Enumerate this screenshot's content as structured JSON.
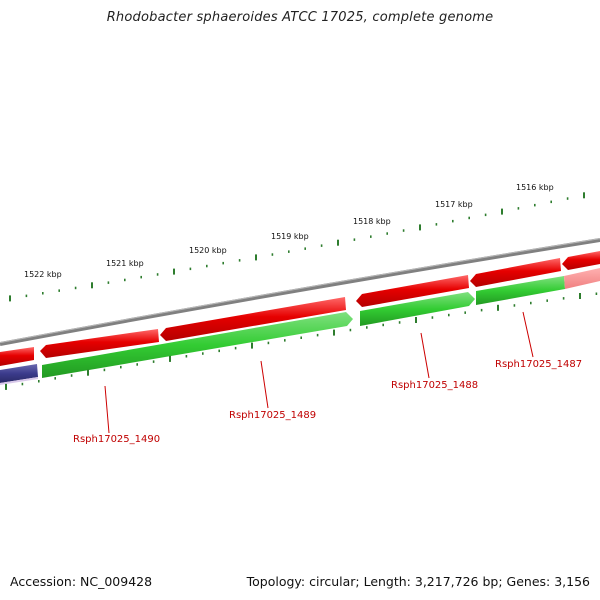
{
  "title": "Rhodobacter sphaeroides ATCC 17025, complete genome",
  "accession": "Accession: NC_009428",
  "topology": "Topology: circular; Length: 3,217,726 bp; Genes: 3,156",
  "colors": {
    "backbone": "#808080",
    "forward_gene": "#e60000",
    "reverse_gene": "#33cc33",
    "other_gene": "#3b3b8c",
    "tick": "#2e7d2e",
    "label": "#c00000"
  },
  "scale": {
    "unit": "kbp",
    "labels": [
      {
        "kbp": 1522,
        "text": "1522 kbp"
      },
      {
        "kbp": 1521,
        "text": "1521 kbp"
      },
      {
        "kbp": 1520,
        "text": "1520 kbp"
      },
      {
        "kbp": 1519,
        "text": "1519 kbp"
      },
      {
        "kbp": 1518,
        "text": "1518 kbp"
      },
      {
        "kbp": 1517,
        "text": "1517 kbp"
      },
      {
        "kbp": 1516,
        "text": "1516 kbp"
      }
    ]
  },
  "gene_labels": [
    {
      "text": "Rsph17025_1490"
    },
    {
      "text": "Rsph17025_1489"
    },
    {
      "text": "Rsph17025_1488"
    },
    {
      "text": "Rsph17025_1487"
    }
  ]
}
